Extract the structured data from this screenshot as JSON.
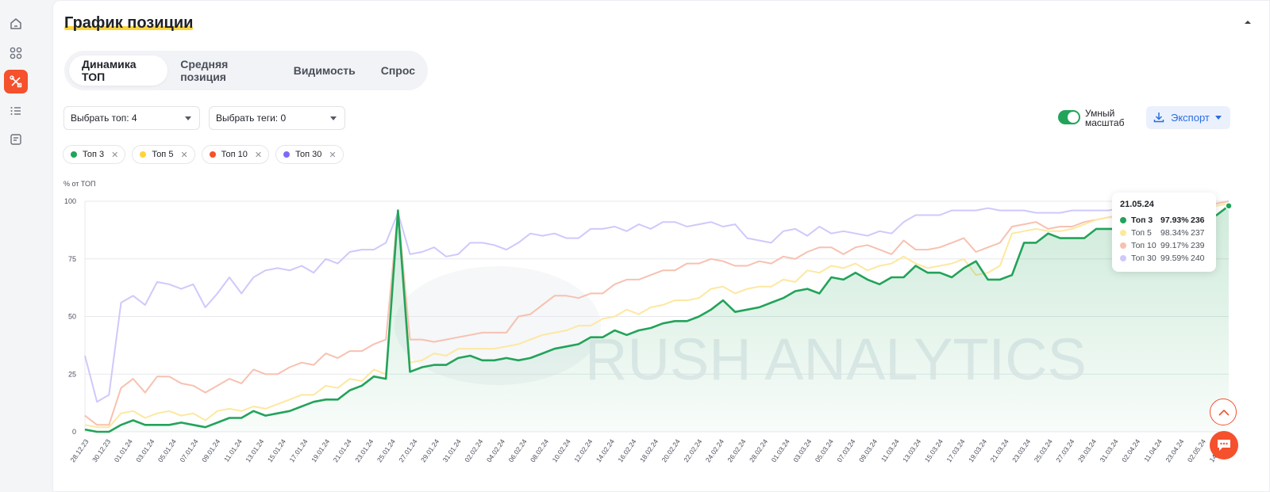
{
  "sidebar": {
    "items": [
      {
        "icon": "home-icon",
        "active": false
      },
      {
        "icon": "apps-grid-icon",
        "active": false
      },
      {
        "icon": "tools-icon",
        "active": true
      },
      {
        "icon": "list-icon",
        "active": false
      },
      {
        "icon": "report-icon",
        "active": false
      }
    ]
  },
  "header": {
    "title": "График позиции"
  },
  "tabs": [
    {
      "label": "Динамика ТОП",
      "active": true
    },
    {
      "label": "Средняя позиция",
      "active": false
    },
    {
      "label": "Видимость",
      "active": false
    },
    {
      "label": "Спрос",
      "active": false
    }
  ],
  "filters": {
    "top_select": "Выбрать топ: 4",
    "tags_select": "Выбрать теги: 0"
  },
  "smart_scale": {
    "label": "Умный масштаб",
    "enabled": true
  },
  "export": {
    "label": "Экспорт"
  },
  "chips": [
    {
      "label": "Топ 3",
      "color": "#22a35a"
    },
    {
      "label": "Топ 5",
      "color": "#ffd43b"
    },
    {
      "label": "Топ 10",
      "color": "#f4512c"
    },
    {
      "label": "Топ 30",
      "color": "#7b6cf6"
    }
  ],
  "chart_data": {
    "type": "line",
    "ylabel": "% от ТОП",
    "ylim": [
      0,
      100
    ],
    "yticks": [
      0,
      25,
      50,
      75,
      100
    ],
    "grid": true,
    "watermark": "RUSH ANALYTICS",
    "x_tick_labels": [
      "28.12.23",
      "30.12.23",
      "01.01.24",
      "03.01.24",
      "05.01.24",
      "07.01.24",
      "09.01.24",
      "11.01.24",
      "13.01.24",
      "15.01.24",
      "17.01.24",
      "19.01.24",
      "21.01.24",
      "23.01.24",
      "25.01.24",
      "27.01.24",
      "29.01.24",
      "31.01.24",
      "02.02.24",
      "04.02.24",
      "06.02.24",
      "08.02.24",
      "10.02.24",
      "12.02.24",
      "14.02.24",
      "16.02.24",
      "18.02.24",
      "20.02.24",
      "22.02.24",
      "24.02.24",
      "26.02.24",
      "28.02.24",
      "01.03.24",
      "03.03.24",
      "05.03.24",
      "07.03.24",
      "09.03.24",
      "11.03.24",
      "13.03.24",
      "15.03.24",
      "17.03.24",
      "19.03.24",
      "21.03.24",
      "23.03.24",
      "25.03.24",
      "27.03.24",
      "29.03.24",
      "31.03.24",
      "02.04.24",
      "11.04.24",
      "23.04.24",
      "02.05.24",
      "14.05.24"
    ],
    "series": [
      {
        "name": "Топ 30",
        "color": "#cfc9fb",
        "values": [
          33,
          13,
          16,
          56,
          59,
          55,
          65,
          64,
          62,
          64,
          54,
          60,
          67,
          60,
          67,
          70,
          71,
          70,
          72,
          69,
          75,
          73,
          78,
          79,
          79,
          82,
          95,
          77,
          78,
          80,
          76,
          77,
          82,
          82,
          81,
          79,
          82,
          86,
          85,
          86,
          84,
          84,
          88,
          88,
          89,
          87,
          90,
          88,
          91,
          91,
          89,
          90,
          91,
          89,
          90,
          84,
          83,
          82,
          87,
          88,
          85,
          89,
          86,
          87,
          86,
          85,
          87,
          86,
          91,
          94,
          94,
          94,
          96,
          96,
          96,
          97,
          96,
          96,
          96,
          95,
          95,
          95,
          96,
          96,
          96,
          96,
          97,
          97,
          96,
          97,
          98,
          98,
          99,
          98,
          99,
          100
        ]
      },
      {
        "name": "Топ 10",
        "color": "#f7c1b0",
        "values": [
          7,
          3,
          3,
          19,
          23,
          17,
          24,
          24,
          21,
          20,
          17,
          20,
          23,
          21,
          27,
          25,
          25,
          28,
          30,
          29,
          34,
          32,
          35,
          35,
          38,
          40,
          96,
          40,
          40,
          39,
          40,
          41,
          42,
          43,
          43,
          43,
          50,
          51,
          55,
          59,
          59,
          58,
          60,
          60,
          64,
          66,
          66,
          68,
          70,
          70,
          73,
          73,
          75,
          74,
          72,
          72,
          74,
          73,
          76,
          75,
          78,
          80,
          80,
          77,
          80,
          81,
          79,
          77,
          83,
          79,
          79,
          80,
          82,
          84,
          78,
          80,
          82,
          89,
          90,
          91,
          88,
          89,
          89,
          91,
          92,
          93,
          94,
          94,
          94,
          95,
          96,
          96,
          97,
          98,
          99,
          100
        ]
      },
      {
        "name": "Топ 5",
        "color": "#fde8a0",
        "values": [
          3,
          2,
          2,
          8,
          9,
          6,
          8,
          9,
          7,
          8,
          5,
          9,
          10,
          9,
          11,
          10,
          12,
          14,
          16,
          16,
          20,
          19,
          23,
          22,
          27,
          25,
          95,
          30,
          31,
          34,
          33,
          36,
          36,
          36,
          36,
          37,
          38,
          40,
          42,
          43,
          44,
          46,
          46,
          49,
          50,
          53,
          51,
          54,
          55,
          57,
          57,
          58,
          62,
          63,
          60,
          62,
          63,
          63,
          66,
          65,
          70,
          69,
          72,
          71,
          73,
          70,
          72,
          73,
          76,
          73,
          71,
          72,
          73,
          75,
          68,
          69,
          72,
          86,
          87,
          88,
          87,
          87,
          88,
          90,
          92,
          93,
          93,
          93,
          94,
          95,
          95,
          96,
          96,
          97,
          98,
          99
        ]
      },
      {
        "name": "Топ 3",
        "color": "#22a35a",
        "values": [
          1,
          0,
          0,
          3,
          5,
          3,
          3,
          3,
          4,
          3,
          2,
          4,
          6,
          6,
          9,
          7,
          8,
          9,
          11,
          13,
          14,
          14,
          18,
          20,
          24,
          23,
          96,
          26,
          28,
          29,
          29,
          32,
          33,
          31,
          31,
          32,
          31,
          32,
          34,
          36,
          37,
          38,
          41,
          41,
          44,
          42,
          44,
          45,
          47,
          48,
          48,
          50,
          53,
          57,
          52,
          53,
          54,
          56,
          58,
          61,
          62,
          60,
          67,
          66,
          69,
          66,
          64,
          67,
          67,
          72,
          69,
          69,
          67,
          71,
          74,
          66,
          66,
          68,
          82,
          82,
          86,
          84,
          84,
          84,
          88,
          88,
          88,
          89,
          89,
          90,
          91,
          91,
          92,
          93,
          94,
          98
        ]
      }
    ]
  },
  "tooltip": {
    "date": "21.05.24",
    "rows": [
      {
        "name": "Топ 3",
        "pct": "97.93%",
        "count": "236",
        "color": "#22a35a",
        "bold": true
      },
      {
        "name": "Топ 5",
        "pct": "98.34%",
        "count": "237",
        "color": "#fde8a0",
        "bold": false
      },
      {
        "name": "Топ 10",
        "pct": "99.17%",
        "count": "239",
        "color": "#f7c1b0",
        "bold": false
      },
      {
        "name": "Топ 30",
        "pct": "99.59%",
        "count": "240",
        "color": "#cfc9fb",
        "bold": false
      }
    ]
  }
}
